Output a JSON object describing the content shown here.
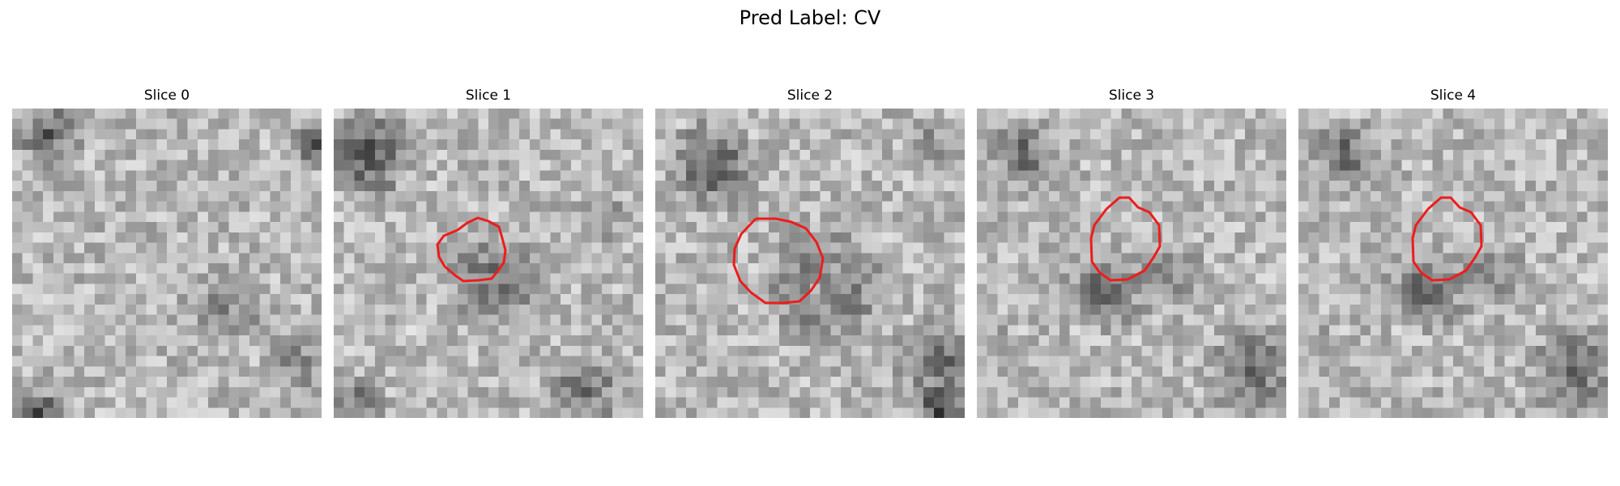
{
  "figure": {
    "title": "Pred Label: CV"
  },
  "panels": [
    {
      "title": "Slice 0",
      "has_contour": false
    },
    {
      "title": "Slice 1",
      "has_contour": true
    },
    {
      "title": "Slice 2",
      "has_contour": true
    },
    {
      "title": "Slice 3",
      "has_contour": true
    },
    {
      "title": "Slice 4",
      "has_contour": true
    }
  ],
  "colors": {
    "contour": "#ee1c1c",
    "background": "#ffffff"
  }
}
